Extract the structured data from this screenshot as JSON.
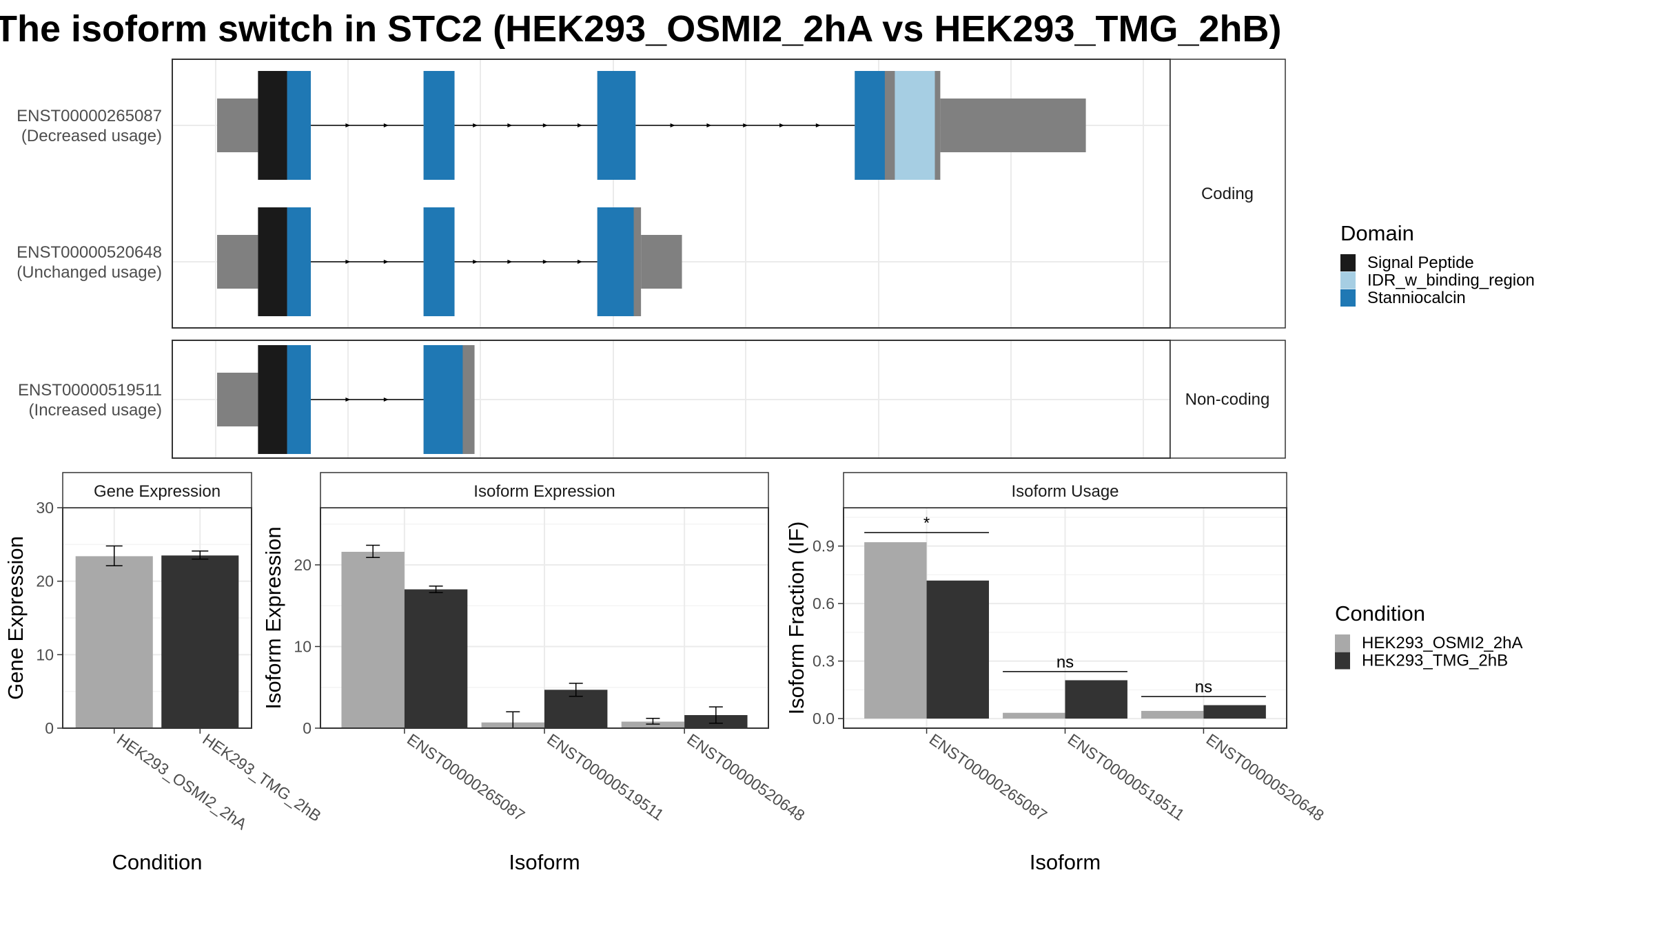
{
  "title": "The isoform switch in STC2 (HEK293_OSMI2_2hA vs HEK293_TMG_2hB)",
  "colors": {
    "signal_peptide": "#1a1a1a",
    "idr": "#a6cee3",
    "stanniocalcin": "#1f78b4",
    "exon": "#808080",
    "condition_a": "#a9a9a9",
    "condition_b": "#333333",
    "intron": "#000000",
    "grid": "#ebebeb"
  },
  "structure": {
    "x_domain": [
      0,
      1000
    ],
    "facets": [
      "Coding",
      "Non-coding"
    ],
    "isoforms": [
      {
        "id": "ENST00000265087",
        "usage": "(Decreased usage)",
        "facet": 0,
        "exons": [
          {
            "x": [
              0,
              45
            ],
            "kind": "utr"
          },
          {
            "x": [
              45,
              103
            ],
            "kind": "cds"
          },
          {
            "x": [
              227,
              261
            ],
            "kind": "cds"
          },
          {
            "x": [
              418,
              460
            ],
            "kind": "cds"
          },
          {
            "x": [
              701,
              795
            ],
            "kind": "cds"
          },
          {
            "x": [
              795,
              955
            ],
            "kind": "utr"
          }
        ],
        "domains": [
          {
            "x": [
              45,
              77
            ],
            "name": "Signal Peptide"
          },
          {
            "x": [
              77,
              103
            ],
            "name": "Stanniocalcin"
          },
          {
            "x": [
              227,
              261
            ],
            "name": "Stanniocalcin"
          },
          {
            "x": [
              418,
              460
            ],
            "name": "Stanniocalcin"
          },
          {
            "x": [
              701,
              734
            ],
            "name": "Stanniocalcin"
          },
          {
            "x": [
              745,
              789
            ],
            "name": "IDR_w_binding_region"
          }
        ],
        "arrows": [
          145,
          187,
          285,
          323,
          362,
          400,
          502,
          542,
          582,
          622,
          662
        ]
      },
      {
        "id": "ENST00000520648",
        "usage": "(Unchanged usage)",
        "facet": 0,
        "exons": [
          {
            "x": [
              0,
              45
            ],
            "kind": "utr"
          },
          {
            "x": [
              45,
              103
            ],
            "kind": "cds"
          },
          {
            "x": [
              227,
              261
            ],
            "kind": "cds"
          },
          {
            "x": [
              418,
              466
            ],
            "kind": "cds"
          },
          {
            "x": [
              466,
              511
            ],
            "kind": "utr"
          }
        ],
        "domains": [
          {
            "x": [
              45,
              77
            ],
            "name": "Signal Peptide"
          },
          {
            "x": [
              77,
              103
            ],
            "name": "Stanniocalcin"
          },
          {
            "x": [
              227,
              261
            ],
            "name": "Stanniocalcin"
          },
          {
            "x": [
              418,
              458
            ],
            "name": "Stanniocalcin"
          }
        ],
        "arrows": [
          145,
          187,
          285,
          323,
          362,
          400
        ]
      },
      {
        "id": "ENST00000519511",
        "usage": "(Increased usage)",
        "facet": 1,
        "exons": [
          {
            "x": [
              0,
              45
            ],
            "kind": "utr"
          },
          {
            "x": [
              45,
              103
            ],
            "kind": "cds"
          },
          {
            "x": [
              227,
              283
            ],
            "kind": "cds"
          }
        ],
        "domains": [
          {
            "x": [
              45,
              77
            ],
            "name": "Signal Peptide"
          },
          {
            "x": [
              77,
              103
            ],
            "name": "Stanniocalcin"
          },
          {
            "x": [
              227,
              270
            ],
            "name": "Stanniocalcin"
          }
        ],
        "arrows": [
          145,
          187
        ]
      }
    ]
  },
  "domain_legend": {
    "title": "Domain",
    "items": [
      {
        "label": "Signal Peptide",
        "color": "#1a1a1a"
      },
      {
        "label": "IDR_w_binding_region",
        "color": "#a6cee3"
      },
      {
        "label": "Stanniocalcin",
        "color": "#1f78b4"
      }
    ]
  },
  "condition_legend": {
    "title": "Condition",
    "items": [
      {
        "label": "HEK293_OSMI2_2hA",
        "color": "#a9a9a9"
      },
      {
        "label": "HEK293_TMG_2hB",
        "color": "#333333"
      }
    ]
  },
  "chart_data": [
    {
      "type": "bar",
      "title": "Gene Expression",
      "xlabel": "Condition",
      "ylabel": "Gene Expression",
      "ylim": [
        0,
        30
      ],
      "yticks": [
        0,
        10,
        20,
        30
      ],
      "categories": [
        "HEK293_OSMI2_2hA",
        "HEK293_TMG_2hB"
      ],
      "values": [
        23.4,
        23.5
      ],
      "errors": [
        [
          22.1,
          24.8
        ],
        [
          23.0,
          24.1
        ]
      ],
      "colors": [
        "#a9a9a9",
        "#333333"
      ]
    },
    {
      "type": "bar",
      "title": "Isoform Expression",
      "xlabel": "Isoform",
      "ylabel": "Isoform Expression",
      "ylim": [
        0,
        27
      ],
      "yticks": [
        0,
        10,
        20
      ],
      "categories": [
        "ENST00000265087",
        "ENST00000519511",
        "ENST00000520648"
      ],
      "series": [
        {
          "name": "HEK293_OSMI2_2hA",
          "values": [
            21.6,
            0.7,
            0.8
          ],
          "errors": [
            [
              20.9,
              22.4
            ],
            [
              0,
              2.0
            ],
            [
              0.5,
              1.2
            ]
          ]
        },
        {
          "name": "HEK293_TMG_2hB",
          "values": [
            17.0,
            4.7,
            1.6
          ],
          "errors": [
            [
              16.6,
              17.4
            ],
            [
              3.9,
              5.5
            ],
            [
              0.6,
              2.6
            ]
          ]
        }
      ]
    },
    {
      "type": "bar",
      "title": "Isoform Usage",
      "xlabel": "Isoform",
      "ylabel": "Isoform Fraction (IF)",
      "ylim": [
        -0.05,
        1.1
      ],
      "yticks": [
        0.0,
        0.3,
        0.6,
        0.9
      ],
      "yticklabels": [
        "0.0",
        "0.3",
        "0.6",
        "0.9"
      ],
      "categories": [
        "ENST00000265087",
        "ENST00000519511",
        "ENST00000520648"
      ],
      "series": [
        {
          "name": "HEK293_OSMI2_2hA",
          "values": [
            0.92,
            0.03,
            0.04
          ]
        },
        {
          "name": "HEK293_TMG_2hB",
          "values": [
            0.72,
            0.2,
            0.07
          ]
        }
      ],
      "significance": [
        {
          "label": "*",
          "y": 0.97
        },
        {
          "label": "ns",
          "y": 0.245
        },
        {
          "label": "ns",
          "y": 0.115
        }
      ]
    }
  ]
}
